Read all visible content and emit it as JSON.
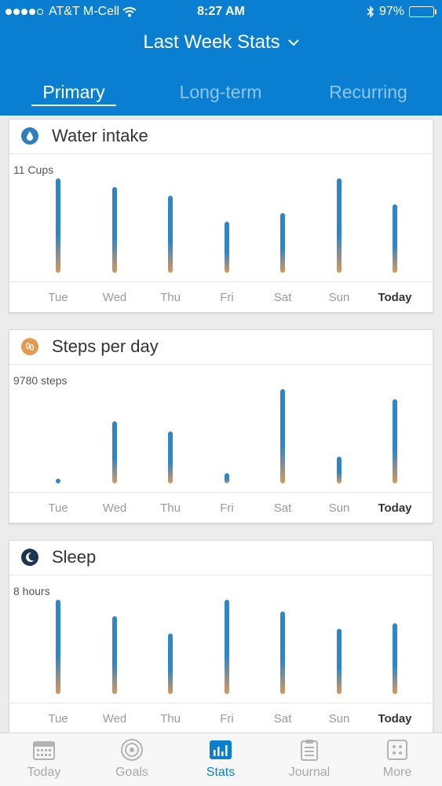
{
  "status_bar": {
    "carrier": "AT&T M-Cell",
    "time": "8:27 AM",
    "battery": "97%"
  },
  "header": {
    "title": "Last Week Stats",
    "tabs": [
      {
        "label": "Primary",
        "active": true
      },
      {
        "label": "Long-term",
        "active": false
      },
      {
        "label": "Recurring",
        "active": false
      }
    ]
  },
  "days": [
    "Tue",
    "Wed",
    "Thu",
    "Fri",
    "Sat",
    "Sun",
    "Today"
  ],
  "cards": [
    {
      "title": "Water intake",
      "icon": "water-drop-icon",
      "accent": "#2f7fbd",
      "max_label": "11 Cups",
      "values": [
        11,
        10,
        9,
        6,
        7,
        11,
        8
      ]
    },
    {
      "title": "Steps per day",
      "icon": "footsteps-icon",
      "accent": "#e39a4e",
      "max_label": "9780 steps",
      "values": [
        400,
        6400,
        5400,
        1100,
        9780,
        2800,
        8700
      ]
    },
    {
      "title": "Sleep",
      "icon": "moon-icon",
      "accent": "#1d3550",
      "max_label": "8 hours",
      "values": [
        8,
        6.6,
        5.1,
        8,
        7,
        5.5,
        6
      ]
    }
  ],
  "tabbar": {
    "items": [
      {
        "label": "Today",
        "icon": "calendar-icon",
        "active": false
      },
      {
        "label": "Goals",
        "icon": "target-icon",
        "active": false
      },
      {
        "label": "Stats",
        "icon": "bar-chart-icon",
        "active": true
      },
      {
        "label": "Journal",
        "icon": "clipboard-icon",
        "active": false
      },
      {
        "label": "More",
        "icon": "grid-icon",
        "active": false
      }
    ]
  },
  "colors": {
    "brand": "#0a7fd2",
    "bar_top": "#2f86c6",
    "bar_bottom": "#d9975a"
  }
}
